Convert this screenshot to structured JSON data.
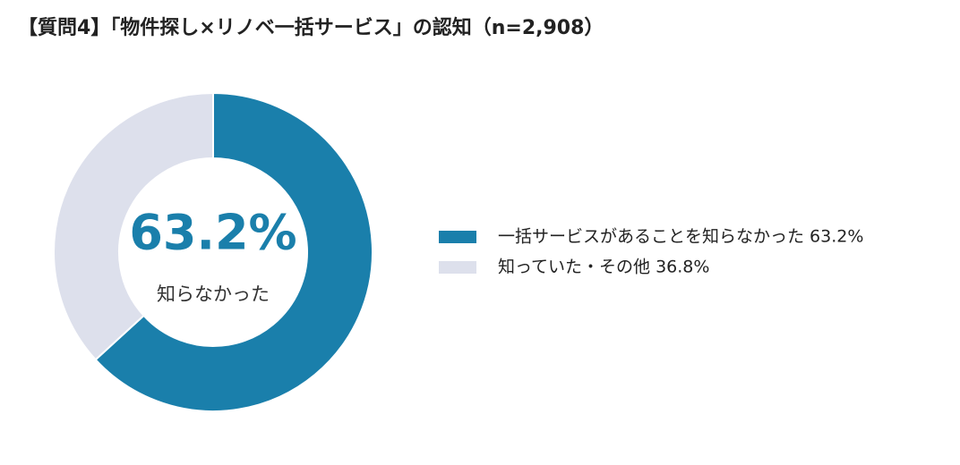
{
  "chart_data": {
    "type": "donut",
    "title": "【質問4】「物件探し×リノベ一括サービス」の認知（n=2,908）",
    "categories": [
      "一括サービスがあることを知らなかった 63.2%",
      "知っていた・その他 36.8%"
    ],
    "values": [
      63.2,
      36.8
    ],
    "colors": [
      "#1a7fab",
      "#dde0ec"
    ],
    "center_label": "63.2%",
    "center_caption": "知らなかった",
    "legend": "right"
  }
}
